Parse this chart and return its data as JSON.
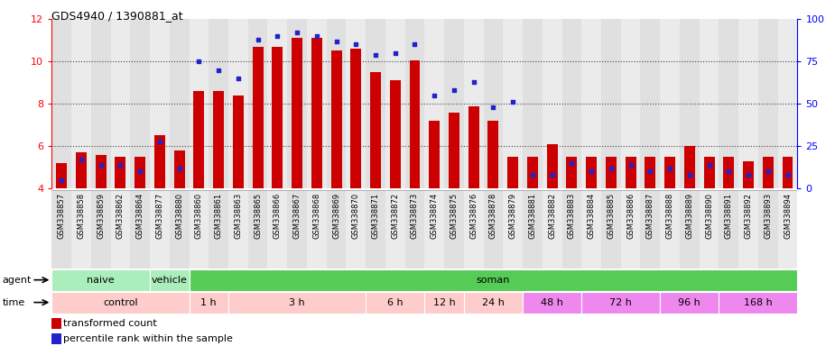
{
  "title": "GDS4940 / 1390881_at",
  "samples": [
    "GSM338857",
    "GSM338858",
    "GSM338859",
    "GSM338862",
    "GSM338864",
    "GSM338877",
    "GSM338880",
    "GSM338860",
    "GSM338861",
    "GSM338863",
    "GSM338865",
    "GSM338866",
    "GSM338867",
    "GSM338868",
    "GSM338869",
    "GSM338870",
    "GSM338871",
    "GSM338872",
    "GSM338873",
    "GSM338874",
    "GSM338875",
    "GSM338876",
    "GSM338878",
    "GSM338879",
    "GSM338881",
    "GSM338882",
    "GSM338883",
    "GSM338884",
    "GSM338885",
    "GSM338886",
    "GSM338887",
    "GSM338888",
    "GSM338889",
    "GSM338890",
    "GSM338891",
    "GSM338892",
    "GSM338893",
    "GSM338894"
  ],
  "red_values": [
    5.2,
    5.7,
    5.6,
    5.5,
    5.5,
    6.5,
    5.8,
    8.6,
    8.6,
    8.4,
    10.7,
    10.7,
    11.1,
    11.1,
    10.5,
    10.6,
    9.5,
    9.1,
    10.05,
    7.2,
    7.6,
    7.9,
    7.2,
    5.5,
    5.5,
    6.1,
    5.5,
    5.5,
    5.5,
    5.5,
    5.5,
    5.5,
    6.0,
    5.5,
    5.5,
    5.3,
    5.5,
    5.5
  ],
  "blue_pct": [
    5,
    17,
    14,
    14,
    10,
    28,
    12,
    75,
    70,
    65,
    88,
    90,
    92,
    90,
    87,
    85,
    79,
    80,
    85,
    55,
    58,
    63,
    48,
    51,
    8,
    8,
    15,
    10,
    12,
    14,
    10,
    12,
    8,
    14,
    10,
    8,
    10,
    8
  ],
  "ylim_left": [
    4,
    12
  ],
  "ylim_right": [
    0,
    100
  ],
  "yticks_left": [
    4,
    6,
    8,
    10,
    12
  ],
  "yticks_right": [
    0,
    25,
    50,
    75,
    100
  ],
  "bar_color": "#CC0000",
  "dot_color": "#2222CC",
  "grid_color": "#888888",
  "agent_groups": [
    {
      "label": "naive",
      "start": 0,
      "end": 5,
      "color": "#AAEEBB"
    },
    {
      "label": "vehicle",
      "start": 5,
      "end": 7,
      "color": "#AAEEBB"
    },
    {
      "label": "soman",
      "start": 7,
      "end": 38,
      "color": "#55CC55"
    }
  ],
  "time_groups": [
    {
      "label": "control",
      "start": 0,
      "end": 7,
      "color": "#FFCCCC"
    },
    {
      "label": "1 h",
      "start": 7,
      "end": 9,
      "color": "#FFCCCC"
    },
    {
      "label": "3 h",
      "start": 9,
      "end": 16,
      "color": "#FFCCCC"
    },
    {
      "label": "6 h",
      "start": 16,
      "end": 19,
      "color": "#FFCCCC"
    },
    {
      "label": "12 h",
      "start": 19,
      "end": 21,
      "color": "#FFCCCC"
    },
    {
      "label": "24 h",
      "start": 21,
      "end": 24,
      "color": "#FFCCCC"
    },
    {
      "label": "48 h",
      "start": 24,
      "end": 27,
      "color": "#EE88EE"
    },
    {
      "label": "72 h",
      "start": 27,
      "end": 31,
      "color": "#EE88EE"
    },
    {
      "label": "96 h",
      "start": 31,
      "end": 34,
      "color": "#EE88EE"
    },
    {
      "label": "168 h",
      "start": 34,
      "end": 38,
      "color": "#EE88EE"
    }
  ],
  "col_colors": [
    "#E0E0E0",
    "#EBEBEB"
  ]
}
